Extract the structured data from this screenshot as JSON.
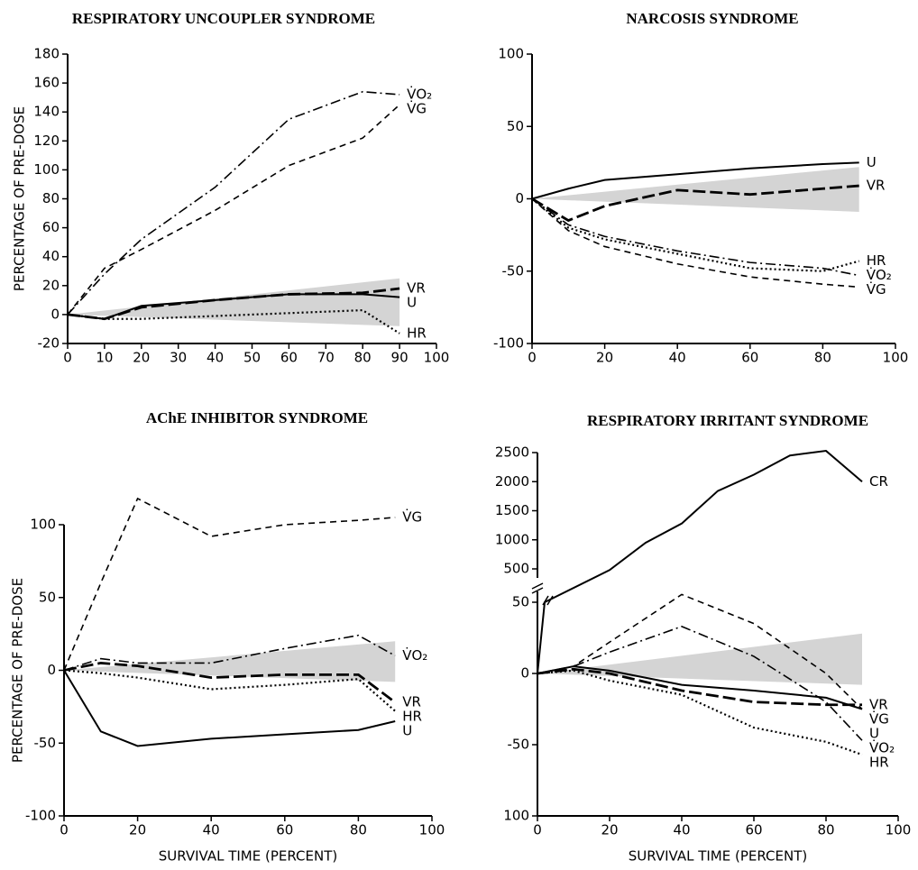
{
  "chart_data": [
    {
      "type": "line",
      "title": "RESPIRATORY UNCOUPLER SYNDROME",
      "ylabel": "PERCENTAGE OF PRE-DOSE",
      "x": [
        0,
        10,
        20,
        40,
        60,
        80,
        90
      ],
      "series": [
        {
          "name": "V̇O₂",
          "color": "#000",
          "style": "dashdot",
          "values": [
            0,
            28,
            52,
            88,
            135,
            154,
            152
          ]
        },
        {
          "name": "V̇G",
          "color": "#000",
          "style": "dashed",
          "values": [
            0,
            32,
            45,
            72,
            103,
            122,
            145
          ]
        },
        {
          "name": "VR",
          "color": "#000",
          "style": "longdash",
          "values": [
            0,
            -3,
            5,
            10,
            14,
            15,
            18
          ]
        },
        {
          "name": "U",
          "color": "#000",
          "style": "solid",
          "values": [
            0,
            -3,
            6,
            10,
            14,
            14,
            12
          ]
        },
        {
          "name": "HR",
          "color": "#000",
          "style": "dotted",
          "values": [
            0,
            -3,
            -3,
            -1,
            1,
            3,
            -13
          ]
        }
      ],
      "band": {
        "x": [
          0,
          90
        ],
        "lower": [
          0,
          -8
        ],
        "upper": [
          0,
          25
        ],
        "color": "#d4d4d4"
      },
      "xlim": [
        0,
        100
      ],
      "xticks": [
        0,
        10,
        20,
        30,
        40,
        50,
        60,
        70,
        80,
        90,
        100
      ],
      "ylim": [
        -20,
        180
      ],
      "yticks": [
        -20,
        0,
        20,
        40,
        60,
        80,
        100,
        120,
        140,
        160,
        180
      ]
    },
    {
      "type": "line",
      "title": "NARCOSIS SYNDROME",
      "x": [
        0,
        10,
        20,
        40,
        60,
        80,
        90
      ],
      "series": [
        {
          "name": "U",
          "color": "#000",
          "style": "solid",
          "values": [
            0,
            7,
            13,
            17,
            21,
            24,
            25
          ]
        },
        {
          "name": "VR",
          "color": "#000",
          "style": "longdash",
          "values": [
            0,
            -15,
            -5,
            6,
            3,
            7,
            9
          ]
        },
        {
          "name": "HR",
          "color": "#000",
          "style": "dotted",
          "values": [
            0,
            -20,
            -28,
            -38,
            -48,
            -50,
            -43
          ]
        },
        {
          "name": "V̇O₂",
          "color": "#000",
          "style": "dashdot",
          "values": [
            0,
            -18,
            -26,
            -36,
            -44,
            -48,
            -53
          ]
        },
        {
          "name": "V̇G",
          "color": "#000",
          "style": "dashed",
          "values": [
            0,
            -22,
            -33,
            -45,
            -54,
            -59,
            -61
          ]
        }
      ],
      "band": {
        "x": [
          0,
          90
        ],
        "lower": [
          0,
          -9
        ],
        "upper": [
          0,
          22
        ],
        "color": "#d4d4d4"
      },
      "xlim": [
        0,
        100
      ],
      "xticks": [
        0,
        20,
        40,
        60,
        80,
        100
      ],
      "ylim": [
        -100,
        100
      ],
      "yticks": [
        -100,
        -50,
        0,
        50,
        100
      ]
    },
    {
      "type": "line",
      "title": "AChE INHIBITOR SYNDROME",
      "ylabel": "PERCENTAGE OF PRE-DOSE",
      "xlabel": "SURVIVAL TIME (PERCENT)",
      "x": [
        0,
        10,
        20,
        40,
        60,
        80,
        90
      ],
      "series": [
        {
          "name": "V̇G",
          "color": "#000",
          "style": "dashed",
          "values": [
            0,
            60,
            118,
            92,
            100,
            103,
            105
          ]
        },
        {
          "name": "V̇O₂",
          "color": "#000",
          "style": "dashdot",
          "values": [
            0,
            8,
            5,
            5,
            15,
            24,
            10
          ]
        },
        {
          "name": "VR",
          "color": "#000",
          "style": "longdash",
          "values": [
            0,
            5,
            3,
            -5,
            -3,
            -3,
            -22
          ]
        },
        {
          "name": "HR",
          "color": "#000",
          "style": "dotted",
          "values": [
            0,
            -2,
            -5,
            -13,
            -10,
            -6,
            -28
          ]
        },
        {
          "name": "U",
          "color": "#000",
          "style": "solid",
          "values": [
            0,
            -42,
            -52,
            -47,
            -44,
            -41,
            -35
          ]
        }
      ],
      "band": {
        "x": [
          0,
          90
        ],
        "lower": [
          0,
          -8
        ],
        "upper": [
          0,
          20
        ],
        "color": "#d4d4d4"
      },
      "xlim": [
        0,
        100
      ],
      "xticks": [
        0,
        20,
        40,
        60,
        80,
        100
      ],
      "ylim": [
        -100,
        100
      ],
      "yticks": [
        -100,
        -50,
        0,
        50,
        100
      ]
    },
    {
      "type": "line",
      "title": "RESPIRATORY IRRITANT SYNDROME",
      "xlabel": "SURVIVAL TIME (PERCENT)",
      "x": [
        0,
        10,
        20,
        40,
        60,
        80,
        90
      ],
      "series": [
        {
          "name": "CR",
          "color": "#000",
          "style": "solid",
          "x": [
            0,
            2,
            20,
            30,
            40,
            50,
            60,
            70,
            80,
            90
          ],
          "values": [
            0,
            50,
            480,
            950,
            1280,
            1840,
            2120,
            2450,
            2530,
            2000
          ]
        },
        {
          "name": "V̇G",
          "color": "#000",
          "style": "dashed",
          "values": [
            0,
            5,
            22,
            60,
            35,
            0,
            -25
          ]
        },
        {
          "name": "VR",
          "color": "#000",
          "style": "longdash",
          "values": [
            0,
            3,
            0,
            -12,
            -20,
            -22,
            -22
          ]
        },
        {
          "name": "U",
          "color": "#000",
          "style": "solid",
          "values": [
            0,
            5,
            2,
            -8,
            -12,
            -17,
            -25
          ]
        },
        {
          "name": "V̇O₂",
          "color": "#000",
          "style": "dashdot",
          "values": [
            0,
            5,
            15,
            33,
            12,
            -20,
            -47
          ]
        },
        {
          "name": "HR",
          "color": "#000",
          "style": "dotted",
          "values": [
            0,
            2,
            -5,
            -15,
            -38,
            -48,
            -57
          ]
        }
      ],
      "band": {
        "x": [
          0,
          90
        ],
        "lower": [
          0,
          -8
        ],
        "upper": [
          0,
          28
        ],
        "color": "#d4d4d4"
      },
      "xlim": [
        0,
        100
      ],
      "xticks": [
        0,
        20,
        40,
        60,
        80,
        100
      ],
      "ylim": [
        -100,
        50
      ],
      "yticks": [
        {
          "value": -100,
          "label": "100"
        },
        -50,
        0,
        50
      ],
      "y2lim": [
        500,
        2500
      ],
      "y2ticks": [
        500,
        1000,
        1500,
        2000,
        2500
      ],
      "axis_break": true
    }
  ]
}
